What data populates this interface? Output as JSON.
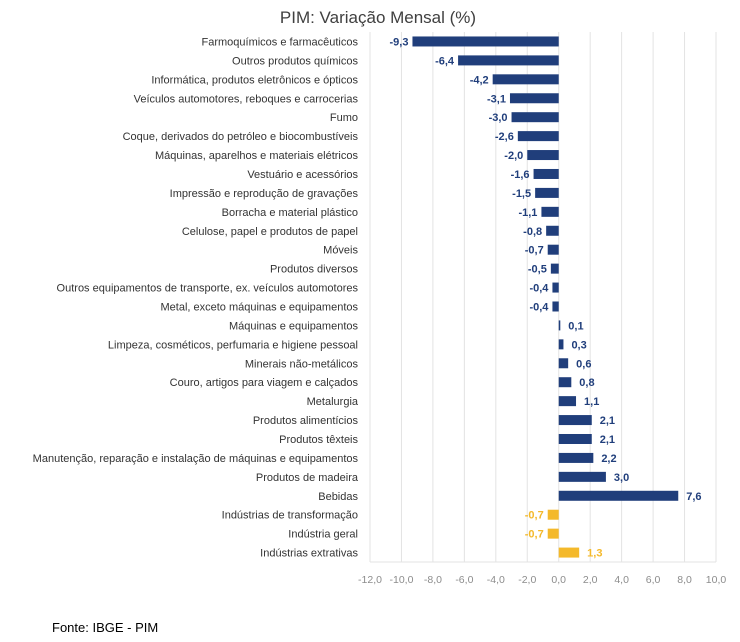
{
  "chart_data": {
    "type": "bar",
    "orientation": "horizontal",
    "title": "PIM: Variação Mensal (%)",
    "xlim": [
      -12,
      10
    ],
    "xticks": [
      "-12,0",
      "-10,0",
      "-8,0",
      "-6,0",
      "-4,0",
      "-2,0",
      "0,0",
      "2,0",
      "4,0",
      "6,0",
      "8,0",
      "10,0"
    ],
    "xtick_values": [
      -12,
      -10,
      -8,
      -6,
      -4,
      -2,
      0,
      2,
      4,
      6,
      8,
      10
    ],
    "grid": "vertical",
    "colors": {
      "sector": "#203e7b",
      "aggregate": "#f4b92b"
    },
    "bars": [
      {
        "label": "Farmoquímicos e farmacêuticos",
        "value": -9.3,
        "display": "-9,3",
        "group": "sector"
      },
      {
        "label": "Outros produtos químicos",
        "value": -6.4,
        "display": "-6,4",
        "group": "sector"
      },
      {
        "label": "Informática, produtos eletrônicos e ópticos",
        "value": -4.2,
        "display": "-4,2",
        "group": "sector"
      },
      {
        "label": "Veículos automotores, reboques e carrocerias",
        "value": -3.1,
        "display": "-3,1",
        "group": "sector"
      },
      {
        "label": "Fumo",
        "value": -3.0,
        "display": "-3,0",
        "group": "sector"
      },
      {
        "label": "Coque, derivados do petróleo e biocombustíveis",
        "value": -2.6,
        "display": "-2,6",
        "group": "sector"
      },
      {
        "label": "Máquinas, aparelhos e materiais elétricos",
        "value": -2.0,
        "display": "-2,0",
        "group": "sector"
      },
      {
        "label": "Vestuário e acessórios",
        "value": -1.6,
        "display": "-1,6",
        "group": "sector"
      },
      {
        "label": "Impressão e reprodução de gravações",
        "value": -1.5,
        "display": "-1,5",
        "group": "sector"
      },
      {
        "label": "Borracha e material plástico",
        "value": -1.1,
        "display": "-1,1",
        "group": "sector"
      },
      {
        "label": "Celulose, papel e produtos de papel",
        "value": -0.8,
        "display": "-0,8",
        "group": "sector"
      },
      {
        "label": "Móveis",
        "value": -0.7,
        "display": "-0,7",
        "group": "sector"
      },
      {
        "label": "Produtos diversos",
        "value": -0.5,
        "display": "-0,5",
        "group": "sector"
      },
      {
        "label": "Outros equipamentos de transporte, ex. veículos automotores",
        "value": -0.4,
        "display": "-0,4",
        "group": "sector"
      },
      {
        "label": "Metal, exceto máquinas e equipamentos",
        "value": -0.4,
        "display": "-0,4",
        "group": "sector"
      },
      {
        "label": "Máquinas e equipamentos",
        "value": 0.1,
        "display": "0,1",
        "group": "sector"
      },
      {
        "label": "Limpeza, cosméticos, perfumaria e higiene pessoal",
        "value": 0.3,
        "display": "0,3",
        "group": "sector"
      },
      {
        "label": "Minerais não-metálicos",
        "value": 0.6,
        "display": "0,6",
        "group": "sector"
      },
      {
        "label": "Couro, artigos para viagem e calçados",
        "value": 0.8,
        "display": "0,8",
        "group": "sector"
      },
      {
        "label": "Metalurgia",
        "value": 1.1,
        "display": "1,1",
        "group": "sector"
      },
      {
        "label": "Produtos alimentícios",
        "value": 2.1,
        "display": "2,1",
        "group": "sector"
      },
      {
        "label": "Produtos têxteis",
        "value": 2.1,
        "display": "2,1",
        "group": "sector"
      },
      {
        "label": "Manutenção, reparação e instalação de máquinas e equipamentos",
        "value": 2.2,
        "display": "2,2",
        "group": "sector"
      },
      {
        "label": "Produtos de madeira",
        "value": 3.0,
        "display": "3,0",
        "group": "sector"
      },
      {
        "label": "Bebidas",
        "value": 7.6,
        "display": "7,6",
        "group": "sector"
      },
      {
        "label": "Indústrias de transformação",
        "value": -0.7,
        "display": "-0,7",
        "group": "aggregate"
      },
      {
        "label": "Indústria geral",
        "value": -0.7,
        "display": "-0,7",
        "group": "aggregate"
      },
      {
        "label": "Indústrias extrativas",
        "value": 1.3,
        "display": "1,3",
        "group": "aggregate"
      }
    ]
  },
  "source": "Fonte: IBGE - PIM"
}
